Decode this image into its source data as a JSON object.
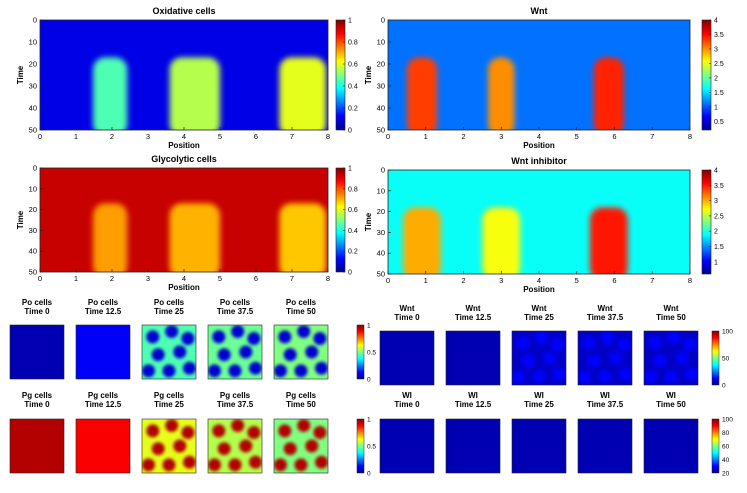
{
  "chart_data": [
    {
      "type": "heatmap",
      "title": "Oxidative cells",
      "xlabel": "Position",
      "ylabel": "Time",
      "xlim": [
        0,
        8
      ],
      "ylim": [
        0,
        50
      ],
      "xticks": [
        "0",
        "1",
        "2",
        "3",
        "4",
        "5",
        "6",
        "7",
        "8"
      ],
      "yticks": [
        "0",
        "10",
        "20",
        "30",
        "40",
        "50"
      ],
      "colorbar_ticks": [
        "0",
        "0.2",
        "0.4",
        "0.6",
        "0.8",
        "1"
      ],
      "colorbar_range": [
        0,
        1
      ],
      "baseline": 0.1,
      "onset_time": 17,
      "stripes": [
        {
          "center": 1.95,
          "width": 0.95,
          "value": 0.45
        },
        {
          "center": 4.3,
          "width": 1.4,
          "value": 0.55
        },
        {
          "center": 7.3,
          "width": 1.3,
          "value": 0.6
        }
      ],
      "colormap": "jet"
    },
    {
      "type": "heatmap",
      "title": "Wnt",
      "xlabel": "Position",
      "ylabel": "Time",
      "xlim": [
        0,
        8
      ],
      "ylim": [
        0,
        50
      ],
      "xticks": [
        "0",
        "1",
        "2",
        "3",
        "4",
        "5",
        "6",
        "7",
        "8"
      ],
      "yticks": [
        "0",
        "10",
        "20",
        "30",
        "40",
        "50"
      ],
      "colorbar_ticks": [
        "0.5",
        "1",
        "1.5",
        "2",
        "2.5",
        "3",
        "3.5",
        "4"
      ],
      "colorbar_range": [
        0.2,
        4
      ],
      "baseline": 1.1,
      "onset_time": 17,
      "stripes": [
        {
          "center": 0.9,
          "width": 0.8,
          "value": 3.3
        },
        {
          "center": 3.0,
          "width": 0.7,
          "value": 3.0
        },
        {
          "center": 5.85,
          "width": 0.8,
          "value": 3.4
        }
      ],
      "colormap": "jet"
    },
    {
      "type": "heatmap",
      "title": "Glycolytic cells",
      "xlabel": "Position",
      "ylabel": "Time",
      "xlim": [
        0,
        8
      ],
      "ylim": [
        0,
        50
      ],
      "xticks": [
        "0",
        "1",
        "2",
        "3",
        "4",
        "5",
        "6",
        "7",
        "8"
      ],
      "yticks": [
        "0",
        "10",
        "20",
        "30",
        "40",
        "50"
      ],
      "colorbar_ticks": [
        "0",
        "0.2",
        "0.4",
        "0.6",
        "0.8",
        "1"
      ],
      "colorbar_range": [
        0,
        1
      ],
      "baseline": 0.93,
      "onset_time": 17,
      "stripes": [
        {
          "center": 1.95,
          "width": 0.95,
          "value": 0.72
        },
        {
          "center": 4.3,
          "width": 1.4,
          "value": 0.7
        },
        {
          "center": 7.3,
          "width": 1.3,
          "value": 0.68
        }
      ],
      "colormap": "jet"
    },
    {
      "type": "heatmap",
      "title": "Wnt inhibitor",
      "xlabel": "Position",
      "ylabel": "Time",
      "xlim": [
        0,
        8
      ],
      "ylim": [
        0,
        50
      ],
      "xticks": [
        "0",
        "1",
        "2",
        "3",
        "4",
        "5",
        "6",
        "7",
        "8"
      ],
      "yticks": [
        "0",
        "10",
        "20",
        "30",
        "40",
        "50"
      ],
      "colorbar_ticks": [
        "1",
        "1.5",
        "2",
        "2.5",
        "3",
        "3.5",
        "4"
      ],
      "colorbar_range": [
        0.6,
        4
      ],
      "baseline": 1.9,
      "onset_time": 18,
      "stripes": [
        {
          "center": 0.9,
          "width": 1.0,
          "value": 3.0
        },
        {
          "center": 3.0,
          "width": 1.0,
          "value": 2.7
        },
        {
          "center": 5.85,
          "width": 1.0,
          "value": 3.5
        }
      ],
      "colormap": "jet"
    }
  ],
  "snapshots": {
    "po": {
      "titles": [
        [
          "Po cells",
          "Time 0"
        ],
        [
          "Po cells",
          "Time 12.5"
        ],
        [
          "Po cells",
          "Time 25"
        ],
        [
          "Po cells",
          "Time 37.5"
        ],
        [
          "Po cells",
          "Time 50"
        ]
      ],
      "colorbar_ticks": [
        "0",
        "0.5",
        "1"
      ],
      "background": [
        0.05,
        0.12,
        0.45,
        0.48,
        0.5
      ],
      "spot": [
        0.05,
        0.12,
        0.08,
        0.08,
        0.08
      ],
      "spotted": [
        false,
        false,
        true,
        true,
        true
      ]
    },
    "pg": {
      "titles": [
        [
          "Pg cells",
          "Time 0"
        ],
        [
          "Pg cells",
          "Time 12.5"
        ],
        [
          "Pg cells",
          "Time 25"
        ],
        [
          "Pg cells",
          "Time 37.5"
        ],
        [
          "Pg cells",
          "Time 50"
        ]
      ],
      "colorbar_ticks": [
        "0",
        "0.5",
        "1"
      ],
      "background": [
        0.95,
        0.88,
        0.6,
        0.55,
        0.5
      ],
      "spot": [
        0.95,
        0.88,
        0.95,
        0.95,
        0.95
      ],
      "spotted": [
        false,
        false,
        true,
        true,
        true
      ]
    },
    "wnt": {
      "titles": [
        [
          "Wnt",
          "Time 0"
        ],
        [
          "Wnt",
          "Time 12.5"
        ],
        [
          "Wnt",
          "Time 25"
        ],
        [
          "Wnt",
          "Time 37.5"
        ],
        [
          "Wnt",
          "Time 50"
        ]
      ],
      "colorbar_ticks": [
        "0",
        "50",
        "100"
      ],
      "background": [
        0.05,
        0.05,
        0.07,
        0.07,
        0.07
      ],
      "spot": [
        0.05,
        0.05,
        0.13,
        0.13,
        0.13
      ],
      "spotted": [
        false,
        false,
        true,
        true,
        true
      ]
    },
    "wi": {
      "titles": [
        [
          "WI",
          "Time 0"
        ],
        [
          "WI",
          "Time 12.5"
        ],
        [
          "WI",
          "Time 25"
        ],
        [
          "WI",
          "Time 37.5"
        ],
        [
          "WI",
          "Time 50"
        ]
      ],
      "colorbar_ticks": [
        "20",
        "40",
        "60",
        "80",
        "100"
      ],
      "background": [
        0.05,
        0.05,
        0.05,
        0.05,
        0.05
      ],
      "spot": [
        0.05,
        0.05,
        0.05,
        0.05,
        0.05
      ],
      "spotted": [
        false,
        false,
        false,
        false,
        false
      ]
    }
  }
}
